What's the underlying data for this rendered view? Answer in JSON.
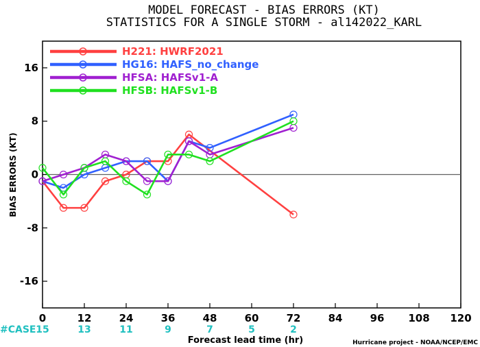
{
  "title_line1": "MODEL FORECAST - BIAS ERRORS (KT)",
  "title_line2": "STATISTICS FOR A SINGLE STORM - al142022_KARL",
  "credit": "Hurricane project - NOAA/NCEP/EMC",
  "case_label": "#CASE",
  "chart_data": {
    "type": "line",
    "xlabel": "Forecast lead time (hr)",
    "ylabel": "BIAS ERRORS (KT)",
    "xlim": [
      0,
      120
    ],
    "ylim": [
      -20,
      20
    ],
    "x_ticks": [
      0,
      12,
      24,
      36,
      48,
      60,
      72,
      84,
      96,
      108,
      120
    ],
    "y_ticks": [
      -16,
      -8,
      0,
      8,
      16
    ],
    "zero_line": true,
    "grid": false,
    "legend_position": "top-left",
    "cases": [
      {
        "x": 0,
        "label": "15"
      },
      {
        "x": 12,
        "label": "13"
      },
      {
        "x": 24,
        "label": "11"
      },
      {
        "x": 36,
        "label": "9"
      },
      {
        "x": 48,
        "label": "7"
      },
      {
        "x": 60,
        "label": "5"
      },
      {
        "x": 72,
        "label": "2"
      }
    ],
    "series": [
      {
        "name": "H221: HWRF2021",
        "color": "#ff4040",
        "x": [
          0,
          6,
          12,
          18,
          24,
          30,
          36,
          42,
          72
        ],
        "values": [
          -1,
          -5,
          -5,
          -1,
          0,
          2,
          2,
          6,
          -6
        ]
      },
      {
        "name": "HG16: HAFS_no_change",
        "color": "#3060ff",
        "x": [
          0,
          6,
          12,
          18,
          24,
          30,
          36,
          42,
          48,
          72
        ],
        "values": [
          -1,
          -2,
          0,
          1,
          2,
          2,
          -1,
          5,
          4,
          9
        ]
      },
      {
        "name": "HFSA: HAFSv1-A",
        "color": "#a020d0",
        "x": [
          0,
          6,
          12,
          18,
          24,
          30,
          36,
          42,
          48,
          72
        ],
        "values": [
          -1,
          0,
          1,
          3,
          2,
          -1,
          -1,
          5,
          3,
          7
        ]
      },
      {
        "name": "HFSB: HAFSv1-B",
        "color": "#20e020",
        "x": [
          0,
          6,
          12,
          18,
          24,
          30,
          36,
          42,
          48,
          72
        ],
        "values": [
          1,
          -3,
          1,
          2,
          -1,
          -3,
          3,
          3,
          2,
          8
        ]
      }
    ]
  },
  "colors": {
    "case_text": "#20c0c0",
    "axis": "#000000",
    "zero_line": "#606060"
  }
}
